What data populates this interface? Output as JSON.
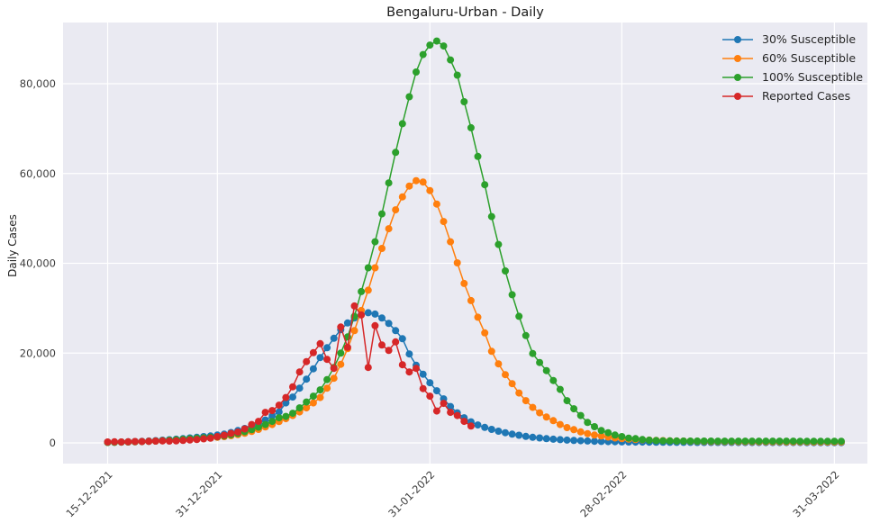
{
  "figure": {
    "title": "Bengaluru-Urban - Daily",
    "y_axis_label": "Daily Cases",
    "colors": {
      "background": "#ffffff",
      "plot_background": "#eaeaf2",
      "grid": "#ffffff",
      "title_text": "#1a1a1a",
      "tick_text": "#3d3d3d",
      "blue": "#1f77b4",
      "orange": "#ff7f0e",
      "green": "#2ca02c",
      "red": "#d62728"
    }
  },
  "chart_data": {
    "type": "line",
    "title": "Bengaluru-Urban - Daily",
    "xlabel": "",
    "ylabel": "Daily Cases",
    "grid": true,
    "legend_position": "upper right",
    "marker": "circle",
    "x_start_date": "15-12-2021",
    "x_step_days": 1,
    "x_tick_labels": [
      "15-12-2021",
      "31-12-2021",
      "31-01-2022",
      "28-02-2022",
      "31-03-2022"
    ],
    "x_tick_day_index": [
      0,
      16,
      47,
      75,
      106
    ],
    "y_ticks": [
      0,
      20000,
      40000,
      60000,
      80000
    ],
    "y_tick_labels": [
      "0",
      "20,000",
      "40,000",
      "60,000",
      "80,000"
    ],
    "ylim": [
      -4600,
      93600
    ],
    "dates": [
      "15-12-2021",
      "16-12-2021",
      "17-12-2021",
      "18-12-2021",
      "19-12-2021",
      "20-12-2021",
      "21-12-2021",
      "22-12-2021",
      "23-12-2021",
      "24-12-2021",
      "25-12-2021",
      "26-12-2021",
      "27-12-2021",
      "28-12-2021",
      "29-12-2021",
      "30-12-2021",
      "31-12-2021",
      "01-01-2022",
      "02-01-2022",
      "03-01-2022",
      "04-01-2022",
      "05-01-2022",
      "06-01-2022",
      "07-01-2022",
      "08-01-2022",
      "09-01-2022",
      "10-01-2022",
      "11-01-2022",
      "12-01-2022",
      "13-01-2022",
      "14-01-2022",
      "15-01-2022",
      "16-01-2022",
      "17-01-2022",
      "18-01-2022",
      "19-01-2022",
      "20-01-2022",
      "21-01-2022",
      "22-01-2022",
      "23-01-2022",
      "24-01-2022",
      "25-01-2022",
      "26-01-2022",
      "27-01-2022",
      "28-01-2022",
      "29-01-2022",
      "30-01-2022",
      "31-01-2022",
      "01-02-2022",
      "02-02-2022",
      "03-02-2022",
      "04-02-2022",
      "05-02-2022",
      "06-02-2022",
      "07-02-2022",
      "08-02-2022",
      "09-02-2022",
      "10-02-2022",
      "11-02-2022",
      "12-02-2022",
      "13-02-2022",
      "14-02-2022",
      "15-02-2022",
      "16-02-2022",
      "17-02-2022",
      "18-02-2022",
      "19-02-2022",
      "20-02-2022",
      "21-02-2022",
      "22-02-2022",
      "23-02-2022",
      "24-02-2022",
      "25-02-2022",
      "26-02-2022",
      "27-02-2022",
      "28-02-2022",
      "01-03-2022",
      "02-03-2022",
      "03-03-2022",
      "04-03-2022",
      "05-03-2022",
      "06-03-2022",
      "07-03-2022",
      "08-03-2022",
      "09-03-2022",
      "10-03-2022",
      "11-03-2022",
      "12-03-2022",
      "13-03-2022",
      "14-03-2022",
      "15-03-2022",
      "16-03-2022",
      "17-03-2022",
      "18-03-2022",
      "19-03-2022",
      "20-03-2022",
      "21-03-2022",
      "22-03-2022",
      "23-03-2022",
      "24-03-2022",
      "25-03-2022",
      "26-03-2022",
      "27-03-2022",
      "28-03-2022",
      "29-03-2022",
      "30-03-2022",
      "31-03-2022",
      "01-04-2022"
    ],
    "series": [
      {
        "name": "30% Susceptible",
        "color": "#1f77b4",
        "values": [
          150,
          180,
          210,
          250,
          300,
          350,
          420,
          500,
          600,
          700,
          820,
          950,
          1100,
          1250,
          1400,
          1550,
          1750,
          1950,
          2300,
          2750,
          3200,
          3750,
          4350,
          5100,
          6000,
          6900,
          8900,
          10200,
          12200,
          14200,
          16500,
          19000,
          21200,
          23300,
          25200,
          26700,
          27800,
          28600,
          29000,
          28700,
          27800,
          26600,
          25000,
          23200,
          19800,
          17300,
          15300,
          13400,
          11600,
          9800,
          8100,
          6700,
          5600,
          4700,
          4000,
          3450,
          3000,
          2600,
          2270,
          1950,
          1700,
          1450,
          1250,
          1100,
          950,
          830,
          720,
          630,
          550,
          480,
          420,
          370,
          330,
          290,
          260,
          230,
          210,
          190,
          175,
          160,
          150,
          140,
          130,
          125,
          120,
          115,
          110,
          105,
          100,
          100,
          95,
          95,
          90,
          90,
          85,
          85,
          80,
          80,
          80,
          75,
          75,
          75,
          70,
          70,
          70,
          70,
          70,
          70
        ]
      },
      {
        "name": "60% Susceptible",
        "color": "#ff7f0e",
        "values": [
          120,
          150,
          180,
          210,
          250,
          290,
          340,
          400,
          470,
          550,
          640,
          740,
          850,
          950,
          1050,
          1150,
          1250,
          1400,
          1600,
          1850,
          2150,
          2550,
          3000,
          3550,
          4100,
          4750,
          5400,
          6100,
          6900,
          7800,
          8900,
          10100,
          12200,
          14400,
          17500,
          21000,
          25000,
          29500,
          34000,
          39000,
          43300,
          47700,
          51900,
          54800,
          57200,
          58400,
          58100,
          56200,
          53200,
          49300,
          44800,
          40100,
          35500,
          31700,
          28000,
          24500,
          20400,
          17600,
          15200,
          13200,
          11100,
          9400,
          7900,
          6700,
          5750,
          4950,
          4100,
          3400,
          2950,
          2450,
          2070,
          1740,
          1540,
          1300,
          1100,
          950,
          850,
          750,
          680,
          620,
          560,
          510,
          470,
          430,
          400,
          370,
          350,
          330,
          310,
          300,
          290,
          280,
          270,
          260,
          255,
          250,
          245,
          240,
          235,
          230,
          225,
          220,
          215,
          210,
          205,
          200,
          200,
          195
        ]
      },
      {
        "name": "100% Susceptible",
        "color": "#2ca02c",
        "values": [
          100,
          130,
          160,
          200,
          240,
          290,
          350,
          420,
          500,
          590,
          690,
          800,
          920,
          1040,
          1150,
          1250,
          1350,
          1550,
          1800,
          2100,
          2500,
          2950,
          3500,
          4100,
          4800,
          5600,
          5900,
          6600,
          7800,
          9100,
          10400,
          11800,
          14100,
          16800,
          20000,
          23600,
          28200,
          33700,
          39000,
          44800,
          51000,
          57900,
          64700,
          71100,
          77100,
          82600,
          86500,
          88600,
          89500,
          88400,
          85300,
          81900,
          76000,
          70200,
          63800,
          57500,
          50400,
          44200,
          38300,
          33000,
          28200,
          23900,
          19900,
          17900,
          16100,
          13900,
          11900,
          9400,
          7600,
          6100,
          4550,
          3600,
          2750,
          2270,
          1740,
          1400,
          1070,
          940,
          740,
          600,
          520,
          470,
          440,
          420,
          410,
          400,
          400,
          395,
          395,
          390,
          390,
          390,
          385,
          385,
          385,
          380,
          380,
          380,
          375,
          375,
          375,
          370,
          370,
          370,
          365,
          365,
          365,
          360
        ]
      },
      {
        "name": "Reported Cases",
        "color": "#d62728",
        "values": [
          200,
          250,
          200,
          250,
          300,
          300,
          350,
          400,
          450,
          400,
          450,
          550,
          650,
          750,
          900,
          1050,
          1400,
          1700,
          2100,
          2400,
          3100,
          4100,
          4800,
          6800,
          7200,
          8400,
          10100,
          12500,
          15800,
          18100,
          20100,
          22100,
          18600,
          16600,
          25800,
          21300,
          30500,
          28500,
          16800,
          26100,
          21800,
          20600,
          22500,
          17400,
          15800,
          16600,
          12100,
          10400,
          7100,
          8800,
          6800,
          6100,
          4800,
          3750
        ]
      }
    ]
  }
}
